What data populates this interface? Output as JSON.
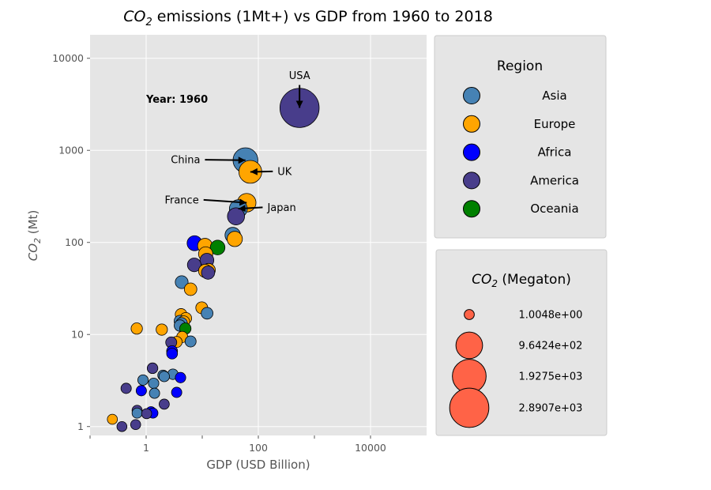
{
  "chart_data": {
    "type": "scatter",
    "title": "CO2 emissions (1Mt+) vs GDP from 1960 to 2018",
    "title_parts": {
      "pre": "CO",
      "sub": "2",
      "post": " emissions (1Mt+) vs GDP from 1960 to 2018"
    },
    "xlabel": "GDP (USD Billion)",
    "ylabel": "CO2 (Mt)",
    "ylabel_parts": {
      "pre": "CO",
      "sub": "2",
      "post": " (Mt)"
    },
    "xscale": "log",
    "yscale": "log",
    "xlim": [
      0.1,
      100000
    ],
    "ylim": [
      0.8,
      18000
    ],
    "x_ticks": [
      {
        "value": 1,
        "label": "1"
      },
      {
        "value": 100,
        "label": "100"
      },
      {
        "value": 10000,
        "label": "10000"
      }
    ],
    "x_minor_ticks": [
      0.1,
      10,
      1000
    ],
    "y_ticks": [
      {
        "value": 1,
        "label": "1"
      },
      {
        "value": 10,
        "label": "10"
      },
      {
        "value": 100,
        "label": "100"
      },
      {
        "value": 1000,
        "label": "1000"
      },
      {
        "value": 10000,
        "label": "10000"
      }
    ],
    "grid": true,
    "year_label": "Year: 1960",
    "year_label_pos": {
      "x": 1.0,
      "y": 3600
    },
    "regions": [
      {
        "name": "Asia",
        "color": "#4682b4"
      },
      {
        "name": "Europe",
        "color": "#ffa500"
      },
      {
        "name": "Africa",
        "color": "#0000ff"
      },
      {
        "name": "America",
        "color": "#483d8b"
      },
      {
        "name": "Oceania",
        "color": "#008000"
      }
    ],
    "points": [
      {
        "x": 543,
        "y": 2890,
        "r": "America"
      },
      {
        "x": 59,
        "y": 780,
        "r": "Asia"
      },
      {
        "x": 72,
        "y": 584,
        "r": "Europe"
      },
      {
        "x": 62,
        "y": 270,
        "r": "Europe"
      },
      {
        "x": 44,
        "y": 232,
        "r": "Asia"
      },
      {
        "x": 40,
        "y": 192,
        "r": "America"
      },
      {
        "x": 35,
        "y": 120,
        "r": "Asia"
      },
      {
        "x": 38,
        "y": 109,
        "r": "Europe"
      },
      {
        "x": 7.3,
        "y": 98,
        "r": "Africa"
      },
      {
        "x": 11.2,
        "y": 92,
        "r": "Europe"
      },
      {
        "x": 18.8,
        "y": 88,
        "r": "Oceania"
      },
      {
        "x": 11.5,
        "y": 75,
        "r": "Europe"
      },
      {
        "x": 12.1,
        "y": 64,
        "r": "America"
      },
      {
        "x": 7.2,
        "y": 57,
        "r": "America"
      },
      {
        "x": 13.0,
        "y": 50,
        "r": "Europe"
      },
      {
        "x": 11.3,
        "y": 49,
        "r": "Europe"
      },
      {
        "x": 12.7,
        "y": 47,
        "r": "America"
      },
      {
        "x": 4.3,
        "y": 37,
        "r": "Asia"
      },
      {
        "x": 6.2,
        "y": 31,
        "r": "Europe"
      },
      {
        "x": 9.8,
        "y": 19.5,
        "r": "Europe"
      },
      {
        "x": 12.2,
        "y": 17,
        "r": "Asia"
      },
      {
        "x": 4.2,
        "y": 16.5,
        "r": "Europe"
      },
      {
        "x": 5.1,
        "y": 15,
        "r": "Europe"
      },
      {
        "x": 4.0,
        "y": 14,
        "r": "Asia"
      },
      {
        "x": 4.7,
        "y": 13.8,
        "r": "Europe"
      },
      {
        "x": 4.3,
        "y": 13.2,
        "r": "Asia"
      },
      {
        "x": 4.0,
        "y": 12.5,
        "r": "Asia"
      },
      {
        "x": 5.0,
        "y": 11.6,
        "r": "Oceania"
      },
      {
        "x": 0.68,
        "y": 11.6,
        "r": "Europe"
      },
      {
        "x": 1.9,
        "y": 11.3,
        "r": "Europe"
      },
      {
        "x": 4.4,
        "y": 9.4,
        "r": "Europe"
      },
      {
        "x": 6.2,
        "y": 8.4,
        "r": "Asia"
      },
      {
        "x": 3.5,
        "y": 8.3,
        "r": "Europe"
      },
      {
        "x": 2.8,
        "y": 8.2,
        "r": "America"
      },
      {
        "x": 2.9,
        "y": 6.6,
        "r": "Africa"
      },
      {
        "x": 2.9,
        "y": 6.2,
        "r": "Africa"
      },
      {
        "x": 1.3,
        "y": 4.3,
        "r": "America"
      },
      {
        "x": 3.0,
        "y": 3.7,
        "r": "Asia"
      },
      {
        "x": 2.0,
        "y": 3.6,
        "r": "Asia"
      },
      {
        "x": 2.1,
        "y": 3.5,
        "r": "Asia"
      },
      {
        "x": 4.1,
        "y": 3.4,
        "r": "Africa"
      },
      {
        "x": 0.88,
        "y": 3.2,
        "r": "Asia"
      },
      {
        "x": 1.36,
        "y": 2.95,
        "r": "Asia"
      },
      {
        "x": 0.44,
        "y": 2.6,
        "r": "America"
      },
      {
        "x": 0.82,
        "y": 2.45,
        "r": "Africa"
      },
      {
        "x": 3.5,
        "y": 2.35,
        "r": "Africa"
      },
      {
        "x": 1.41,
        "y": 2.3,
        "r": "Asia"
      },
      {
        "x": 2.1,
        "y": 1.75,
        "r": "America"
      },
      {
        "x": 0.69,
        "y": 1.5,
        "r": "America"
      },
      {
        "x": 1.22,
        "y": 1.45,
        "r": "Africa"
      },
      {
        "x": 0.69,
        "y": 1.4,
        "r": "Asia"
      },
      {
        "x": 1.32,
        "y": 1.4,
        "r": "Africa"
      },
      {
        "x": 1.02,
        "y": 1.38,
        "r": "America"
      },
      {
        "x": 0.25,
        "y": 1.2,
        "r": "Europe"
      },
      {
        "x": 0.65,
        "y": 1.05,
        "r": "America"
      },
      {
        "x": 0.37,
        "y": 1.0,
        "r": "America"
      }
    ],
    "annotations": [
      {
        "text": "USA",
        "x": 543,
        "y": 2890,
        "text_x": 543,
        "text_y": 6500,
        "anchor": "middle"
      },
      {
        "text": "China",
        "x": 59,
        "y": 780,
        "text_x": 9.2,
        "text_y": 790,
        "anchor": "end"
      },
      {
        "text": "UK",
        "x": 72,
        "y": 584,
        "text_x": 220,
        "text_y": 590,
        "anchor": "start"
      },
      {
        "text": "France",
        "x": 62,
        "y": 270,
        "text_x": 8.7,
        "text_y": 290,
        "anchor": "end"
      },
      {
        "text": "Japan",
        "x": 44,
        "y": 232,
        "text_x": 145,
        "text_y": 240,
        "anchor": "start"
      }
    ],
    "region_legend": {
      "title": "Region",
      "location": "upper right"
    },
    "size_legend": {
      "title": "CO2 (Megaton)",
      "title_parts": {
        "pre": "CO",
        "sub": "2",
        "post": " (Megaton)"
      },
      "location": "lower right",
      "color": "#ff6347",
      "entries": [
        {
          "label": "1.0048e+00",
          "value": 1.0048
        },
        {
          "label": "9.6424e+02",
          "value": 964.24
        },
        {
          "label": "1.9275e+03",
          "value": 1927.5
        },
        {
          "label": "2.8907e+03",
          "value": 2890.7
        }
      ]
    }
  }
}
